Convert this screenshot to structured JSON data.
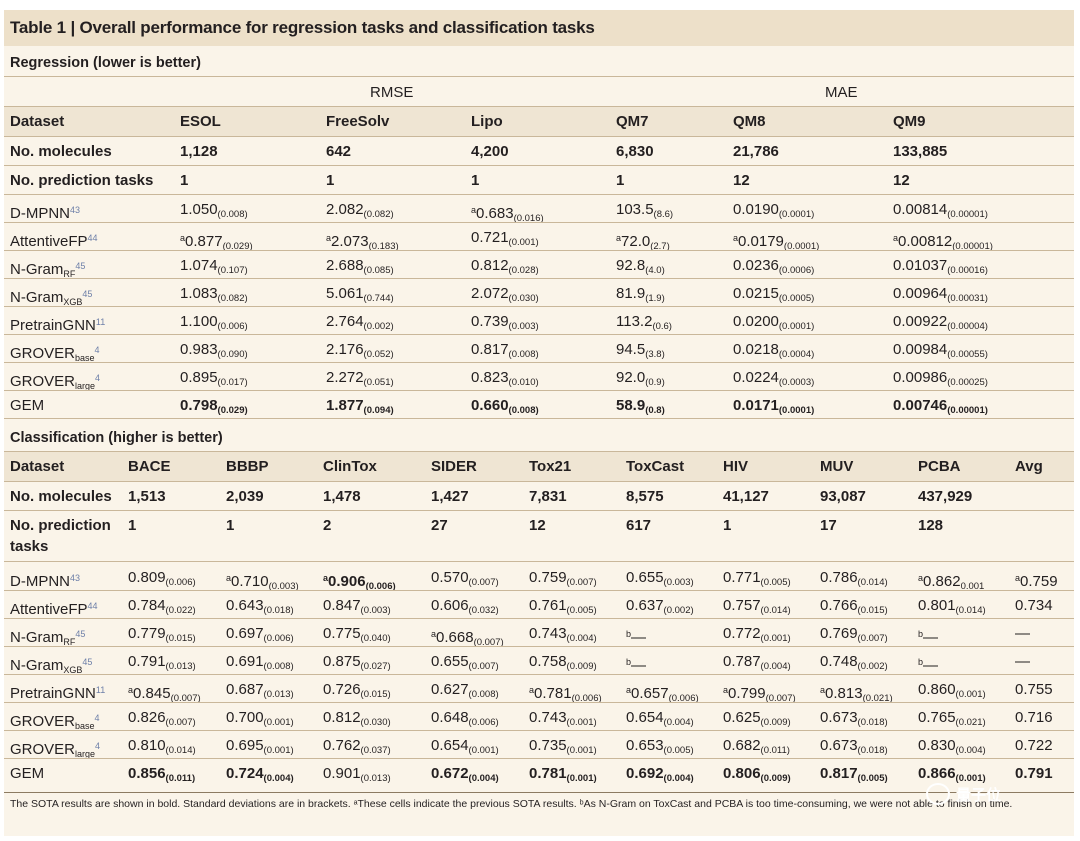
{
  "title": "Table 1 | Overall performance for regression tasks and classification tasks",
  "regression": {
    "section_title": "Regression (lower is better)",
    "group_headers": [
      "RMSE",
      "MAE"
    ],
    "header_label": "Dataset",
    "columns": [
      "ESOL",
      "FreeSolv",
      "Lipo",
      "QM7",
      "QM8",
      "QM9"
    ],
    "molecules_label": "No. molecules",
    "molecules": [
      "1,128",
      "642",
      "4,200",
      "6,830",
      "21,786",
      "133,885"
    ],
    "tasks_label": "No. prediction tasks",
    "tasks": [
      "1",
      "1",
      "1",
      "1",
      "12",
      "12"
    ],
    "rows": [
      {
        "label": "D-MPNN",
        "sub": "",
        "ref": "43",
        "bold": false,
        "cells": [
          {
            "pre": "",
            "v": "1.050",
            "sd": "(0.008)"
          },
          {
            "pre": "",
            "v": "2.082",
            "sd": "(0.082)"
          },
          {
            "pre": "a",
            "v": "0.683",
            "sd": "(0.016)"
          },
          {
            "pre": "",
            "v": "103.5",
            "sd": "(8.6)"
          },
          {
            "pre": "",
            "v": "0.0190",
            "sd": "(0.0001)"
          },
          {
            "pre": "",
            "v": "0.00814",
            "sd": "(0.00001)"
          }
        ]
      },
      {
        "label": "AttentiveFP",
        "sub": "",
        "ref": "44",
        "bold": false,
        "cells": [
          {
            "pre": "a",
            "v": "0.877",
            "sd": "(0.029)"
          },
          {
            "pre": "a",
            "v": "2.073",
            "sd": "(0.183)"
          },
          {
            "pre": "",
            "v": "0.721",
            "sd": "(0.001)"
          },
          {
            "pre": "a",
            "v": "72.0",
            "sd": "(2.7)"
          },
          {
            "pre": "a",
            "v": "0.0179",
            "sd": "(0.0001)"
          },
          {
            "pre": "a",
            "v": "0.00812",
            "sd": "(0.00001)"
          }
        ]
      },
      {
        "label": "N-Gram",
        "sub": "RF",
        "ref": "45",
        "bold": false,
        "cells": [
          {
            "pre": "",
            "v": "1.074",
            "sd": "(0.107)"
          },
          {
            "pre": "",
            "v": "2.688",
            "sd": "(0.085)"
          },
          {
            "pre": "",
            "v": "0.812",
            "sd": "(0.028)"
          },
          {
            "pre": "",
            "v": "92.8",
            "sd": "(4.0)"
          },
          {
            "pre": "",
            "v": "0.0236",
            "sd": "(0.0006)"
          },
          {
            "pre": "",
            "v": "0.01037",
            "sd": "(0.00016)"
          }
        ]
      },
      {
        "label": "N-Gram",
        "sub": "XGB",
        "ref": "45",
        "bold": false,
        "cells": [
          {
            "pre": "",
            "v": "1.083",
            "sd": "(0.082)"
          },
          {
            "pre": "",
            "v": "5.061",
            "sd": "(0.744)"
          },
          {
            "pre": "",
            "v": "2.072",
            "sd": "(0.030)"
          },
          {
            "pre": "",
            "v": "81.9",
            "sd": "(1.9)"
          },
          {
            "pre": "",
            "v": "0.0215",
            "sd": "(0.0005)"
          },
          {
            "pre": "",
            "v": "0.00964",
            "sd": "(0.00031)"
          }
        ]
      },
      {
        "label": "PretrainGNN",
        "sub": "",
        "ref": "11",
        "bold": false,
        "cells": [
          {
            "pre": "",
            "v": "1.100",
            "sd": "(0.006)"
          },
          {
            "pre": "",
            "v": "2.764",
            "sd": "(0.002)"
          },
          {
            "pre": "",
            "v": "0.739",
            "sd": "(0.003)"
          },
          {
            "pre": "",
            "v": "113.2",
            "sd": "(0.6)"
          },
          {
            "pre": "",
            "v": "0.0200",
            "sd": "(0.0001)"
          },
          {
            "pre": "",
            "v": "0.00922",
            "sd": "(0.00004)"
          }
        ]
      },
      {
        "label": "GROVER",
        "sub": "base",
        "ref": "4",
        "bold": false,
        "cells": [
          {
            "pre": "",
            "v": "0.983",
            "sd": "(0.090)"
          },
          {
            "pre": "",
            "v": "2.176",
            "sd": "(0.052)"
          },
          {
            "pre": "",
            "v": "0.817",
            "sd": "(0.008)"
          },
          {
            "pre": "",
            "v": "94.5",
            "sd": "(3.8)"
          },
          {
            "pre": "",
            "v": "0.0218",
            "sd": "(0.0004)"
          },
          {
            "pre": "",
            "v": "0.00984",
            "sd": "(0.00055)"
          }
        ]
      },
      {
        "label": "GROVER",
        "sub": "large",
        "ref": "4",
        "bold": false,
        "cells": [
          {
            "pre": "",
            "v": "0.895",
            "sd": "(0.017)"
          },
          {
            "pre": "",
            "v": "2.272",
            "sd": "(0.051)"
          },
          {
            "pre": "",
            "v": "0.823",
            "sd": "(0.010)"
          },
          {
            "pre": "",
            "v": "92.0",
            "sd": "(0.9)"
          },
          {
            "pre": "",
            "v": "0.0224",
            "sd": "(0.0003)"
          },
          {
            "pre": "",
            "v": "0.00986",
            "sd": "(0.00025)"
          }
        ]
      },
      {
        "label": "GEM",
        "sub": "",
        "ref": "",
        "bold": true,
        "cells": [
          {
            "pre": "",
            "v": "0.798",
            "sd": "(0.029)"
          },
          {
            "pre": "",
            "v": "1.877",
            "sd": "(0.094)"
          },
          {
            "pre": "",
            "v": "0.660",
            "sd": "(0.008)"
          },
          {
            "pre": "",
            "v": "58.9",
            "sd": "(0.8)"
          },
          {
            "pre": "",
            "v": "0.0171",
            "sd": "(0.0001)"
          },
          {
            "pre": "",
            "v": "0.00746",
            "sd": "(0.00001)"
          }
        ]
      }
    ]
  },
  "classification": {
    "section_title": "Classification (higher is better)",
    "header_label": "Dataset",
    "columns": [
      "BACE",
      "BBBP",
      "ClinTox",
      "SIDER",
      "Tox21",
      "ToxCast",
      "HIV",
      "MUV",
      "PCBA",
      "Avg"
    ],
    "molecules_label": "No. molecules",
    "molecules": [
      "1,513",
      "2,039",
      "1,478",
      "1,427",
      "7,831",
      "8,575",
      "41,127",
      "93,087",
      "437,929",
      ""
    ],
    "tasks_label_1": "No. prediction",
    "tasks_label_2": "tasks",
    "tasks": [
      "1",
      "1",
      "2",
      "27",
      "12",
      "617",
      "1",
      "17",
      "128",
      ""
    ],
    "rows": [
      {
        "label": "D-MPNN",
        "sub": "",
        "ref": "43",
        "gembold": false,
        "cells": [
          {
            "pre": "",
            "v": "0.809",
            "sd": "(0.006)",
            "b": false
          },
          {
            "pre": "a",
            "v": "0.710",
            "sd": "(0.003)",
            "b": false
          },
          {
            "pre": "a",
            "v": "0.906",
            "sd": "(0.006)",
            "b": true
          },
          {
            "pre": "",
            "v": "0.570",
            "sd": "(0.007)",
            "b": false
          },
          {
            "pre": "",
            "v": "0.759",
            "sd": "(0.007)",
            "b": false
          },
          {
            "pre": "",
            "v": "0.655",
            "sd": "(0.003)",
            "b": false
          },
          {
            "pre": "",
            "v": "0.771",
            "sd": "(0.005)",
            "b": false
          },
          {
            "pre": "",
            "v": "0.786",
            "sd": "(0.014)",
            "b": false
          },
          {
            "pre": "a",
            "v": "0.862",
            "sd": "0.001",
            "b": false
          },
          {
            "pre": "a",
            "v": "0.759",
            "sd": "",
            "b": false
          }
        ]
      },
      {
        "label": "AttentiveFP",
        "sub": "",
        "ref": "44",
        "gembold": false,
        "cells": [
          {
            "pre": "",
            "v": "0.784",
            "sd": "(0.022)",
            "b": false
          },
          {
            "pre": "",
            "v": "0.643",
            "sd": "(0.018)",
            "b": false
          },
          {
            "pre": "",
            "v": "0.847",
            "sd": "(0.003)",
            "b": false
          },
          {
            "pre": "",
            "v": "0.606",
            "sd": "(0.032)",
            "b": false
          },
          {
            "pre": "",
            "v": "0.761",
            "sd": "(0.005)",
            "b": false
          },
          {
            "pre": "",
            "v": "0.637",
            "sd": "(0.002)",
            "b": false
          },
          {
            "pre": "",
            "v": "0.757",
            "sd": "(0.014)",
            "b": false
          },
          {
            "pre": "",
            "v": "0.766",
            "sd": "(0.015)",
            "b": false
          },
          {
            "pre": "",
            "v": "0.801",
            "sd": "(0.014)",
            "b": false
          },
          {
            "pre": "",
            "v": "0.734",
            "sd": "",
            "b": false
          }
        ]
      },
      {
        "label": "N-Gram",
        "sub": "RF",
        "ref": "45",
        "gembold": false,
        "cells": [
          {
            "pre": "",
            "v": "0.779",
            "sd": "(0.015)",
            "b": false
          },
          {
            "pre": "",
            "v": "0.697",
            "sd": "(0.006)",
            "b": false
          },
          {
            "pre": "",
            "v": "0.775",
            "sd": "(0.040)",
            "b": false
          },
          {
            "pre": "a",
            "v": "0.668",
            "sd": "(0.007)",
            "b": false
          },
          {
            "pre": "",
            "v": "0.743",
            "sd": "(0.004)",
            "b": false
          },
          {
            "pre": "b",
            "v": "—",
            "sd": "",
            "b": false
          },
          {
            "pre": "",
            "v": "0.772",
            "sd": "(0.001)",
            "b": false
          },
          {
            "pre": "",
            "v": "0.769",
            "sd": "(0.007)",
            "b": false
          },
          {
            "pre": "b",
            "v": "—",
            "sd": "",
            "b": false
          },
          {
            "pre": "",
            "v": "—",
            "sd": "",
            "b": false
          }
        ]
      },
      {
        "label": "N-Gram",
        "sub": "XGB",
        "ref": "45",
        "gembold": false,
        "cells": [
          {
            "pre": "",
            "v": "0.791",
            "sd": "(0.013)",
            "b": false
          },
          {
            "pre": "",
            "v": "0.691",
            "sd": "(0.008)",
            "b": false
          },
          {
            "pre": "",
            "v": "0.875",
            "sd": "(0.027)",
            "b": false
          },
          {
            "pre": "",
            "v": "0.655",
            "sd": "(0.007)",
            "b": false
          },
          {
            "pre": "",
            "v": "0.758",
            "sd": "(0.009)",
            "b": false
          },
          {
            "pre": "b",
            "v": "—",
            "sd": "",
            "b": false
          },
          {
            "pre": "",
            "v": "0.787",
            "sd": "(0.004)",
            "b": false
          },
          {
            "pre": "",
            "v": "0.748",
            "sd": "(0.002)",
            "b": false
          },
          {
            "pre": "b",
            "v": "—",
            "sd": "",
            "b": false
          },
          {
            "pre": "",
            "v": "—",
            "sd": "",
            "b": false
          }
        ]
      },
      {
        "label": "PretrainGNN",
        "sub": "",
        "ref": "11",
        "gembold": false,
        "cells": [
          {
            "pre": "a",
            "v": "0.845",
            "sd": "(0.007)",
            "b": false
          },
          {
            "pre": "",
            "v": "0.687",
            "sd": "(0.013)",
            "b": false
          },
          {
            "pre": "",
            "v": "0.726",
            "sd": "(0.015)",
            "b": false
          },
          {
            "pre": "",
            "v": "0.627",
            "sd": "(0.008)",
            "b": false
          },
          {
            "pre": "a",
            "v": "0.781",
            "sd": "(0.006)",
            "b": false
          },
          {
            "pre": "a",
            "v": "0.657",
            "sd": "(0.006)",
            "b": false
          },
          {
            "pre": "a",
            "v": "0.799",
            "sd": "(0.007)",
            "b": false
          },
          {
            "pre": "a",
            "v": "0.813",
            "sd": "(0.021)",
            "b": false
          },
          {
            "pre": "",
            "v": "0.860",
            "sd": "(0.001)",
            "b": false
          },
          {
            "pre": "",
            "v": "0.755",
            "sd": "",
            "b": false
          }
        ]
      },
      {
        "label": "GROVER",
        "sub": "base",
        "ref": "4",
        "gembold": false,
        "cells": [
          {
            "pre": "",
            "v": "0.826",
            "sd": "(0.007)",
            "b": false
          },
          {
            "pre": "",
            "v": "0.700",
            "sd": "(0.001)",
            "b": false
          },
          {
            "pre": "",
            "v": "0.812",
            "sd": "(0.030)",
            "b": false
          },
          {
            "pre": "",
            "v": "0.648",
            "sd": "(0.006)",
            "b": false
          },
          {
            "pre": "",
            "v": "0.743",
            "sd": "(0.001)",
            "b": false
          },
          {
            "pre": "",
            "v": "0.654",
            "sd": "(0.004)",
            "b": false
          },
          {
            "pre": "",
            "v": "0.625",
            "sd": "(0.009)",
            "b": false
          },
          {
            "pre": "",
            "v": "0.673",
            "sd": "(0.018)",
            "b": false
          },
          {
            "pre": "",
            "v": "0.765",
            "sd": "(0.021)",
            "b": false
          },
          {
            "pre": "",
            "v": "0.716",
            "sd": "",
            "b": false
          }
        ]
      },
      {
        "label": "GROVER",
        "sub": "large",
        "ref": "4",
        "gembold": false,
        "cells": [
          {
            "pre": "",
            "v": "0.810",
            "sd": "(0.014)",
            "b": false
          },
          {
            "pre": "",
            "v": "0.695",
            "sd": "(0.001)",
            "b": false
          },
          {
            "pre": "",
            "v": "0.762",
            "sd": "(0.037)",
            "b": false
          },
          {
            "pre": "",
            "v": "0.654",
            "sd": "(0.001)",
            "b": false
          },
          {
            "pre": "",
            "v": "0.735",
            "sd": "(0.001)",
            "b": false
          },
          {
            "pre": "",
            "v": "0.653",
            "sd": "(0.005)",
            "b": false
          },
          {
            "pre": "",
            "v": "0.682",
            "sd": "(0.011)",
            "b": false
          },
          {
            "pre": "",
            "v": "0.673",
            "sd": "(0.018)",
            "b": false
          },
          {
            "pre": "",
            "v": "0.830",
            "sd": "(0.004)",
            "b": false
          },
          {
            "pre": "",
            "v": "0.722",
            "sd": "",
            "b": false
          }
        ]
      },
      {
        "label": "GEM",
        "sub": "",
        "ref": "",
        "gembold": true,
        "cells": [
          {
            "pre": "",
            "v": "0.856",
            "sd": "(0.011)",
            "b": true
          },
          {
            "pre": "",
            "v": "0.724",
            "sd": "(0.004)",
            "b": true
          },
          {
            "pre": "",
            "v": "0.901",
            "sd": "(0.013)",
            "b": false
          },
          {
            "pre": "",
            "v": "0.672",
            "sd": "(0.004)",
            "b": true
          },
          {
            "pre": "",
            "v": "0.781",
            "sd": "(0.001)",
            "b": true
          },
          {
            "pre": "",
            "v": "0.692",
            "sd": "(0.004)",
            "b": true
          },
          {
            "pre": "",
            "v": "0.806",
            "sd": "(0.009)",
            "b": true
          },
          {
            "pre": "",
            "v": "0.817",
            "sd": "(0.005)",
            "b": true
          },
          {
            "pre": "",
            "v": "0.866",
            "sd": "(0.001)",
            "b": true
          },
          {
            "pre": "",
            "v": "0.791",
            "sd": "",
            "b": true
          }
        ]
      }
    ]
  },
  "footnote": "The SOTA results are shown in bold. Standard deviations are in brackets. ᵃThese cells indicate the previous SOTA results. ᵇAs N-Gram on ToxCast and PCBA is too time-consuming, we were not able to finish on time.",
  "watermark": "量子位"
}
